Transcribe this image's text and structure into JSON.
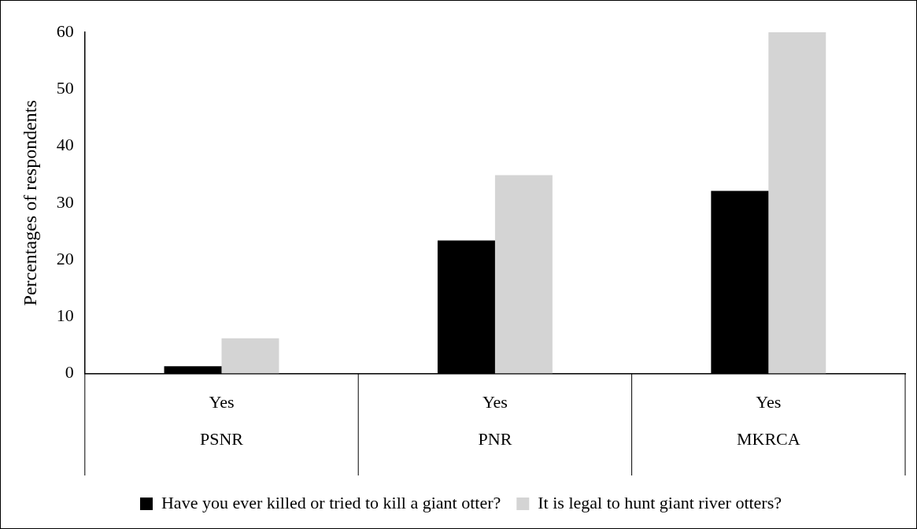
{
  "chart_data": {
    "type": "bar",
    "ylabel": "Percentages of respondents",
    "categories": [
      "Yes",
      "Yes",
      "Yes"
    ],
    "series": [
      {
        "name": "Have you ever killed or tried to kill a giant otter?",
        "color": "#000000",
        "values": [
          1.3,
          23.4,
          32.1
        ]
      },
      {
        "name": "It is legal to hunt giant river otters?",
        "color": "#d4d4d4",
        "values": [
          6.2,
          34.9,
          60
        ]
      }
    ],
    "annotations": [
      "PSNR",
      "PNR",
      "MKRCA"
    ],
    "ylim": [
      0,
      60
    ],
    "yticks": [
      0,
      10,
      20,
      30,
      40,
      50,
      60
    ],
    "grid": false,
    "legend": "bottom"
  }
}
